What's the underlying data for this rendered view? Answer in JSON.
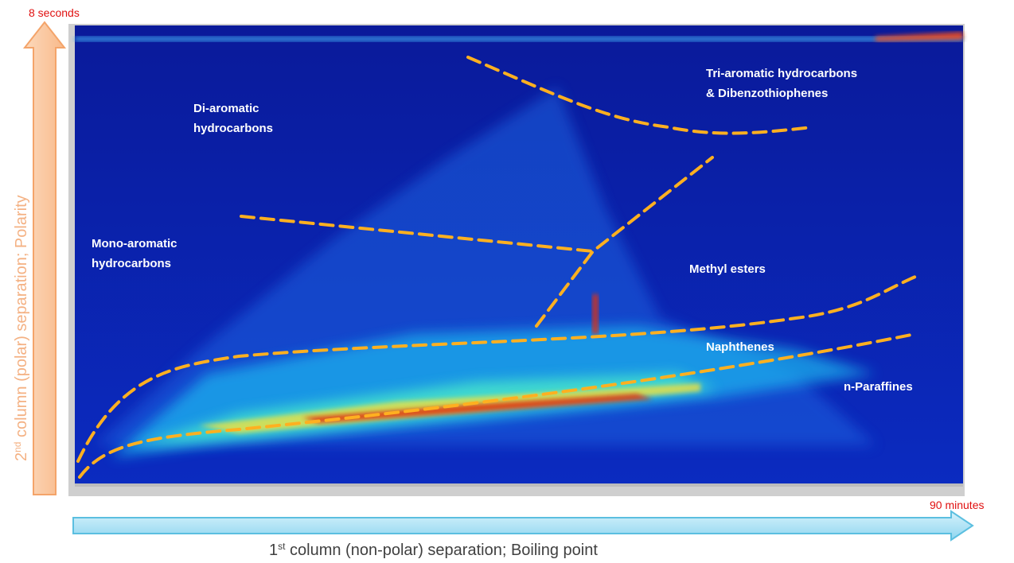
{
  "axis_labels": {
    "y_top": "8 seconds",
    "x_end": "90 minutes",
    "y": {
      "number": "2",
      "suffix": "nd",
      "text": " column (polar) separation; Polarity"
    },
    "x": {
      "number": "1",
      "suffix": "st",
      "text": " column (non-polar) separation; Boiling point"
    }
  },
  "regions": [
    {
      "lines": [
        "Tri-aromatic hydrocarbons",
        "& Dibenzothiophenes"
      ]
    },
    {
      "lines": [
        "Di-aromatic",
        "hydrocarbons"
      ]
    },
    {
      "lines": [
        "Mono-aromatic",
        "hydrocarbons"
      ]
    },
    {
      "lines": [
        "Methyl esters"
      ]
    },
    {
      "lines": [
        "Naphthenes"
      ]
    },
    {
      "lines": [
        "n-Paraffines"
      ]
    }
  ]
}
